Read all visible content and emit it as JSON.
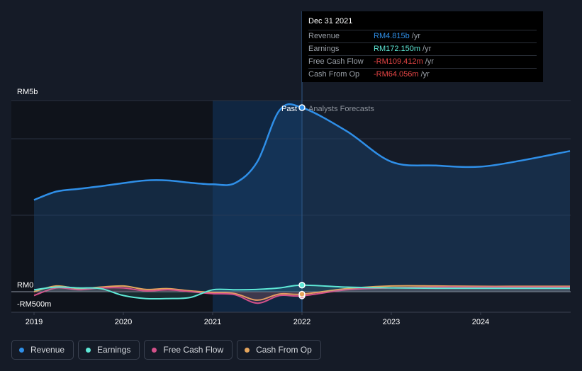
{
  "chart_data": {
    "type": "area",
    "x": [
      2019.0,
      2019.25,
      2019.5,
      2019.75,
      2020.0,
      2020.25,
      2020.5,
      2020.75,
      2021.0,
      2021.25,
      2021.5,
      2021.75,
      2022.0,
      2022.5,
      2023.0,
      2023.5,
      2024.0,
      2024.5,
      2025.0
    ],
    "series": [
      {
        "name": "Revenue",
        "color": "#2f8fe8",
        "values": [
          2.4,
          2.62,
          2.69,
          2.76,
          2.84,
          2.91,
          2.91,
          2.85,
          2.81,
          2.84,
          3.4,
          4.75,
          4.815,
          4.2,
          3.4,
          3.3,
          3.27,
          3.45,
          3.68
        ]
      },
      {
        "name": "Earnings",
        "color": "#5ee8d6",
        "values": [
          0.05,
          0.12,
          0.1,
          0.08,
          -0.1,
          -0.18,
          -0.18,
          -0.15,
          0.05,
          0.05,
          0.06,
          0.1,
          0.17215,
          0.12,
          0.1,
          0.09,
          0.09,
          0.09,
          0.09
        ]
      },
      {
        "name": "Free Cash Flow",
        "color": "#d4518a",
        "values": [
          -0.1,
          0.1,
          0.05,
          0.1,
          0.1,
          0.02,
          0.05,
          0.0,
          -0.05,
          -0.08,
          -0.3,
          -0.1,
          -0.109412,
          0.05,
          0.1,
          0.12,
          0.12,
          0.12,
          0.12
        ]
      },
      {
        "name": "Cash From Op",
        "color": "#e5a55c",
        "values": [
          0.0,
          0.15,
          0.08,
          0.12,
          0.15,
          0.06,
          0.08,
          0.02,
          -0.02,
          -0.05,
          -0.22,
          -0.06,
          -0.064056,
          0.08,
          0.15,
          0.15,
          0.14,
          0.14,
          0.14
        ]
      }
    ],
    "xlim": [
      2018.93,
      2024.98
    ],
    "ylim": [
      -0.5,
      5.0
    ],
    "x_ticks": [
      2019,
      2020,
      2021,
      2022,
      2023,
      2024
    ],
    "x_tick_labels": [
      "2019",
      "2020",
      "2021",
      "2022",
      "2023",
      "2024"
    ],
    "y_tick_labels": [
      {
        "value": 5.0,
        "label": "RM5b"
      },
      {
        "value": 0.0,
        "label": "RM0"
      },
      {
        "value": -0.5,
        "label": "-RM500m"
      }
    ],
    "past_label": "Past",
    "forecast_label": "Analysts Forecasts",
    "divider_x": 2022.0,
    "highlight_range": [
      2021.0,
      2022.0
    ],
    "tooltip": {
      "date": "Dec 31 2021",
      "rows": [
        {
          "label": "Revenue",
          "value": "RM4.815b",
          "unit": "/yr",
          "color": "#2f8fe8"
        },
        {
          "label": "Earnings",
          "value": "RM172.150m",
          "unit": "/yr",
          "color": "#5ee8d6"
        },
        {
          "label": "Free Cash Flow",
          "value": "-RM109.412m",
          "unit": "/yr",
          "color": "#e64545"
        },
        {
          "label": "Cash From Op",
          "value": "-RM64.056m",
          "unit": "/yr",
          "color": "#e64545"
        }
      ]
    }
  },
  "legend": [
    {
      "label": "Revenue",
      "color": "#2f8fe8"
    },
    {
      "label": "Earnings",
      "color": "#5ee8d6"
    },
    {
      "label": "Free Cash Flow",
      "color": "#d4518a"
    },
    {
      "label": "Cash From Op",
      "color": "#e5a55c"
    }
  ]
}
